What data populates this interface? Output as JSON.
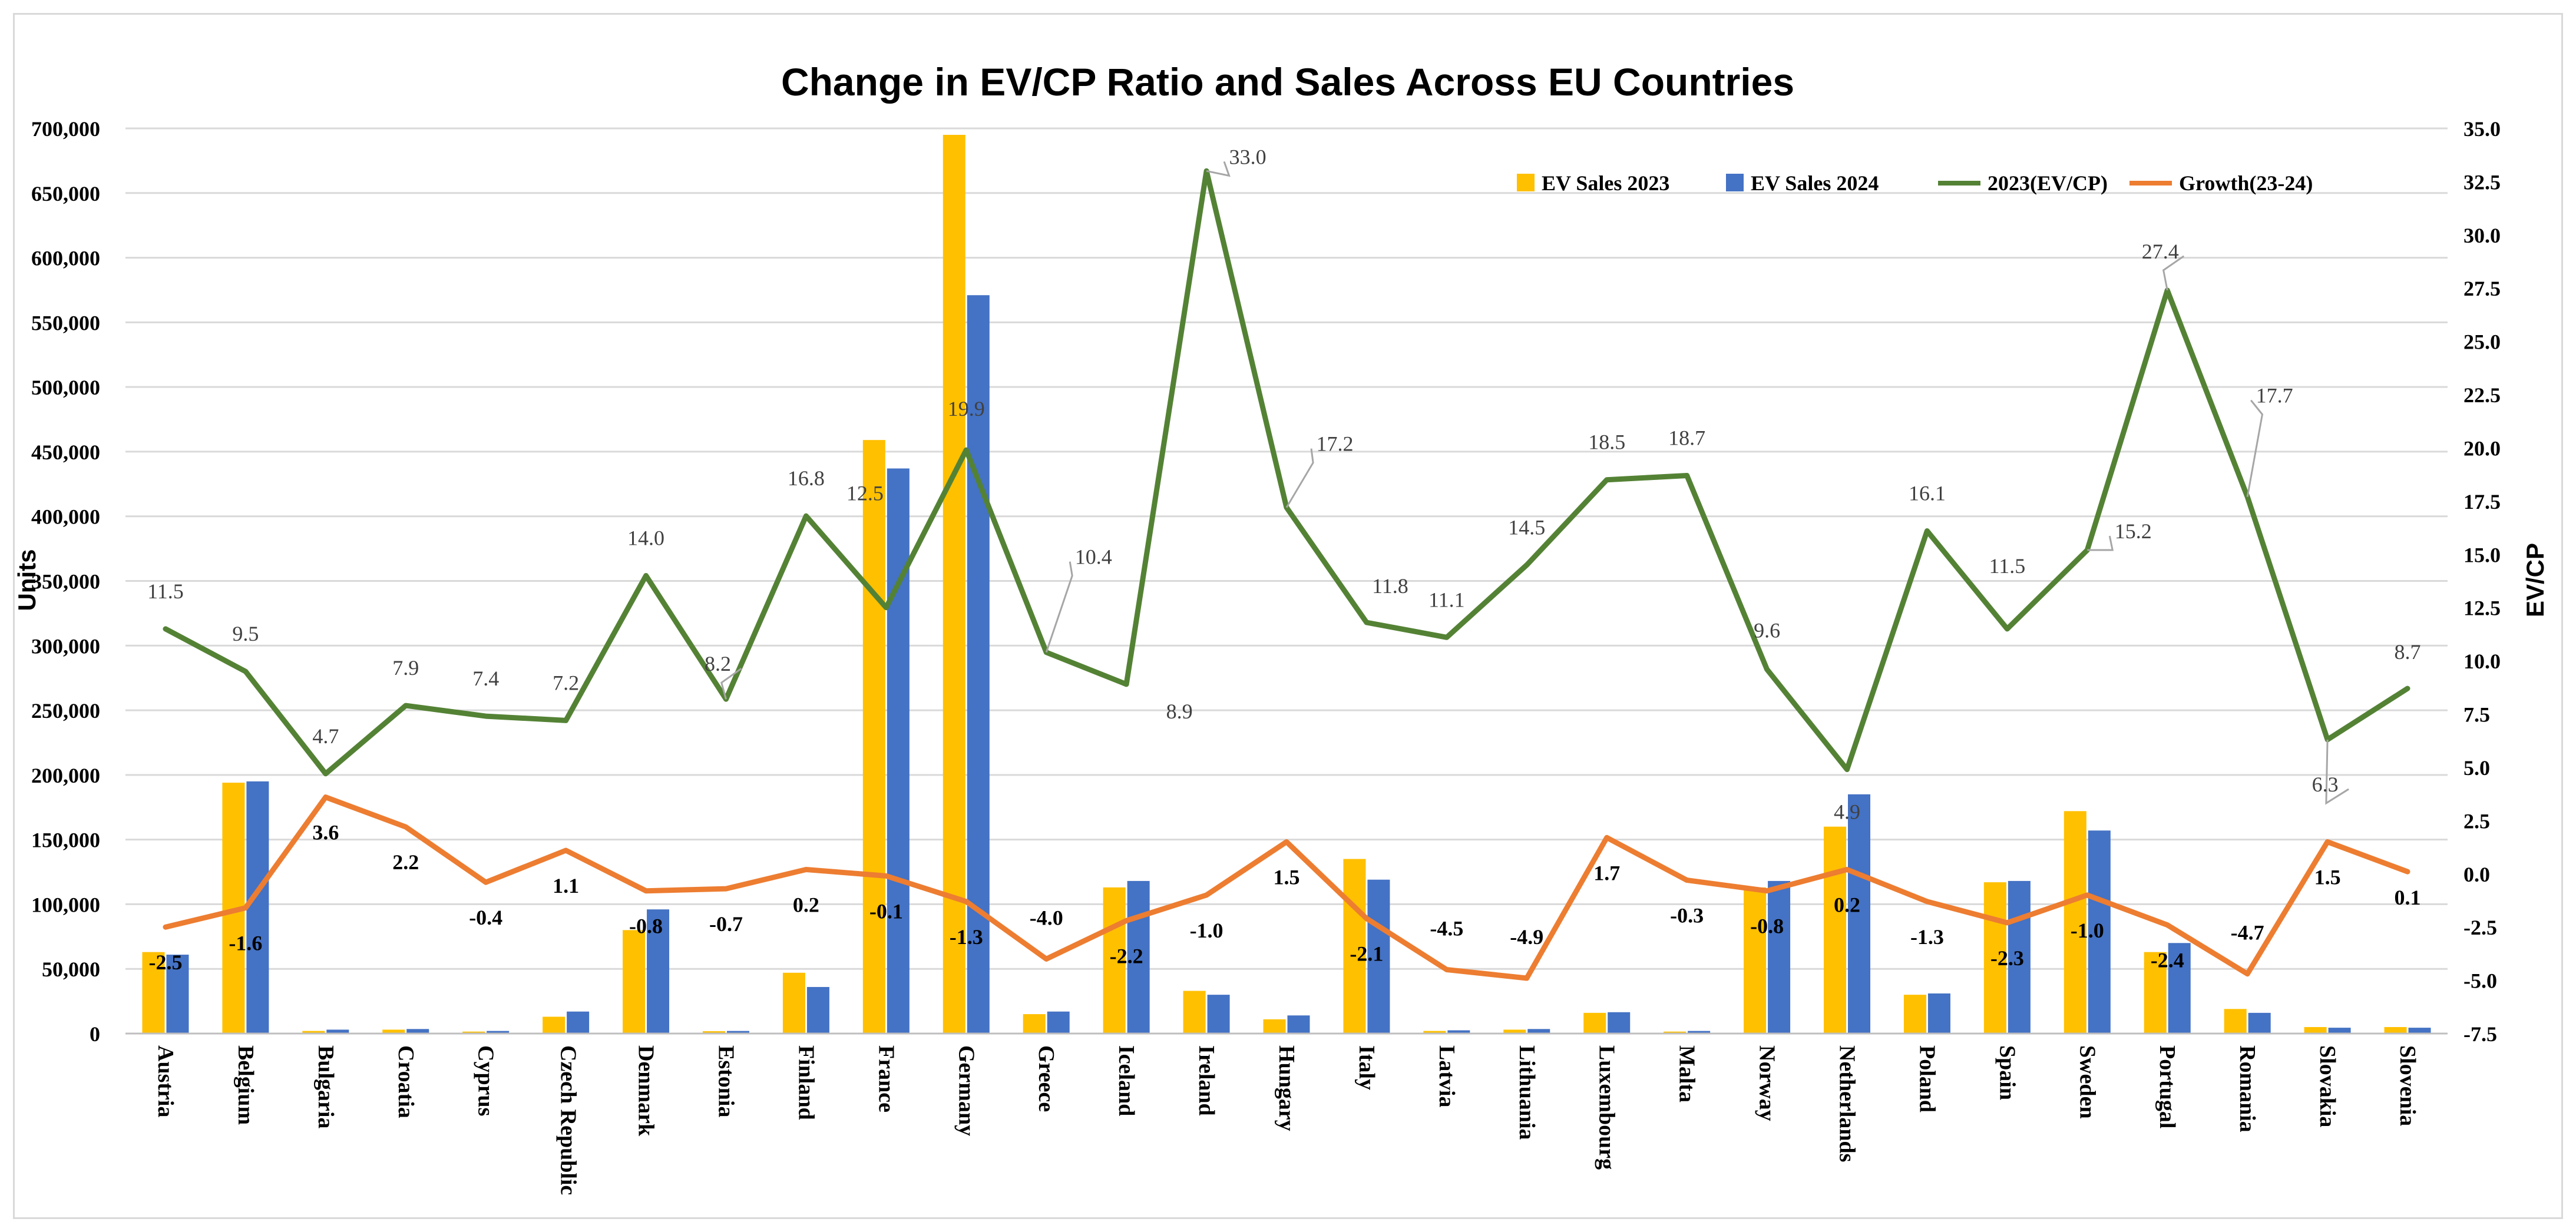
{
  "chart_data": {
    "type": "bar",
    "title": "Change in EV/CP Ratio and Sales Across EU Countries",
    "ylabel": "Units",
    "y2label": "EV/CP",
    "ylim": [
      0,
      700000
    ],
    "y2lim": [
      -7.5,
      35
    ],
    "grid": true,
    "legend_position": "top-right",
    "categories": [
      "Austria",
      "Belgium",
      "Bulgaria",
      "Croatia",
      "Cyprus",
      "Czech Republic",
      "Denmark",
      "Estonia",
      "Finland",
      "France",
      "Germany",
      "Greece",
      "Iceland",
      "Ireland",
      "Hungary",
      "Italy",
      "Latvia",
      "Lithuania",
      "Luxembourg",
      "Malta",
      "Norway",
      "Netherlands",
      "Poland",
      "Spain",
      "Sweden",
      "Portugal",
      "Romania",
      "Slovakia",
      "Slovenia"
    ],
    "yticks": [
      "0",
      "50,000",
      "100,000",
      "150,000",
      "200,000",
      "250,000",
      "300,000",
      "350,000",
      "400,000",
      "450,000",
      "500,000",
      "550,000",
      "600,000",
      "650,000",
      "700,000"
    ],
    "y2ticks": [
      "-7.5",
      "-5.0",
      "-2.5",
      "0.0",
      "2.5",
      "5.0",
      "7.5",
      "10.0",
      "12.5",
      "15.0",
      "17.5",
      "20.0",
      "22.5",
      "25.0",
      "27.5",
      "30.0",
      "32.5",
      "35.0"
    ],
    "series": [
      {
        "name": "EV Sales 2023",
        "kind": "bar",
        "axis": "left",
        "color": "#FFC000",
        "values": [
          63000,
          194000,
          2000,
          3000,
          1500,
          13000,
          80000,
          1800,
          47000,
          459000,
          695000,
          15000,
          113000,
          33000,
          11000,
          135000,
          2000,
          3000,
          16000,
          1500,
          113000,
          160000,
          30000,
          117000,
          172000,
          63000,
          19000,
          5000,
          5000
        ]
      },
      {
        "name": "EV Sales 2024",
        "kind": "bar",
        "axis": "left",
        "color": "#4472C4",
        "values": [
          61000,
          195000,
          3000,
          3500,
          2000,
          17000,
          96000,
          2000,
          36000,
          437000,
          571000,
          17000,
          118000,
          30000,
          14000,
          119000,
          2500,
          3500,
          16500,
          2000,
          118000,
          185000,
          31000,
          118000,
          157000,
          70000,
          16000,
          4500,
          4500
        ]
      },
      {
        "name": "2023(EV/CP)",
        "kind": "line",
        "axis": "right",
        "color": "#548235",
        "values": [
          11.5,
          9.5,
          4.7,
          7.9,
          7.4,
          7.2,
          14.0,
          8.2,
          16.8,
          12.5,
          19.9,
          10.4,
          8.9,
          33.0,
          17.2,
          11.8,
          11.1,
          14.5,
          18.5,
          18.7,
          9.6,
          4.9,
          16.1,
          11.5,
          15.2,
          27.4,
          17.7,
          6.3,
          8.7
        ],
        "labels": [
          "11.5",
          "9.5",
          "4.7",
          "7.9",
          "7.4",
          "7.2",
          "14.0",
          "8.2",
          "16.8",
          "12.5",
          "19.9",
          "10.4",
          "8.9",
          "33.0",
          "17.2",
          "11.8",
          "11.1",
          "14.5",
          "18.5",
          "18.7",
          "9.6",
          "4.9",
          "16.1",
          "11.5",
          "15.2",
          "27.4",
          "17.7",
          "6.3",
          "8.7"
        ]
      },
      {
        "name": "Growth(23-24)",
        "kind": "line",
        "axis": "right",
        "color": "#ED7D31",
        "values": [
          -2.5,
          -1.6,
          3.6,
          2.2,
          -0.4,
          1.1,
          -0.8,
          -0.7,
          0.2,
          -0.1,
          -1.3,
          -4.0,
          -2.2,
          -1.0,
          1.5,
          -2.1,
          -4.5,
          -4.9,
          1.7,
          -0.3,
          -0.8,
          0.2,
          -1.3,
          -2.3,
          -1.0,
          -2.4,
          -4.7,
          1.5,
          0.1
        ],
        "labels": [
          "-2.5",
          "-1.6",
          "3.6",
          "2.2",
          "-0.4",
          "1.1",
          "-0.8",
          "-0.7",
          "0.2",
          "-0.1",
          "-1.3",
          "-4.0",
          "-2.2",
          "-1.0",
          "1.5",
          "-2.1",
          "-4.5",
          "-4.9",
          "1.7",
          "-0.3",
          "-0.8",
          "0.2",
          "-1.3",
          "-2.3",
          "-1.0",
          "-2.4",
          "-4.7",
          "1.5",
          "0.1"
        ]
      }
    ]
  }
}
